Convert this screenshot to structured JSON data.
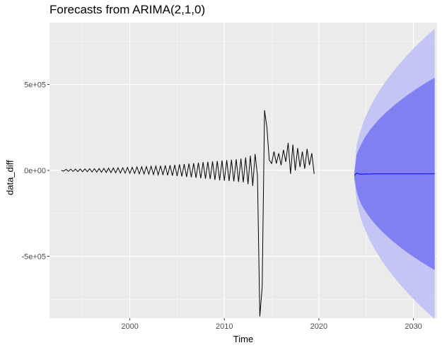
{
  "chart_data": {
    "type": "line",
    "title": "Forecasts from ARIMA(2,1,0)",
    "xlabel": "Time",
    "ylabel": "data_diff",
    "xlim": [
      1991.5,
      2032.5
    ],
    "ylim": [
      -860000,
      860000
    ],
    "x_ticks": [
      2000,
      2010,
      2020,
      2030
    ],
    "x_tick_labels": [
      "2000",
      "2010",
      "2020",
      "2030"
    ],
    "y_ticks": [
      -500000,
      0,
      500000
    ],
    "y_tick_labels": [
      "-5e+05",
      "0e+00",
      "5e+05"
    ],
    "grid": true,
    "background": "#EBEBEB",
    "colors": {
      "history_line": "#000000",
      "forecast_line": "#0000FF",
      "interval_80": "#8080F2",
      "interval_95": "#C4C4F5"
    },
    "history": {
      "x_start": 1992.75,
      "step": 0.25,
      "values": [
        0,
        -4000,
        6000,
        -5000,
        7000,
        -6000,
        8000,
        -7000,
        8000,
        -8000,
        9000,
        -8000,
        10000,
        -9000,
        10000,
        -10000,
        11000,
        -11000,
        12000,
        -12000,
        13000,
        -13000,
        14000,
        -14000,
        15000,
        -15000,
        16000,
        -16000,
        17000,
        -17000,
        18000,
        -18000,
        20000,
        -20000,
        21000,
        -21000,
        22000,
        -22000,
        24000,
        -24000,
        25000,
        -26000,
        27000,
        -27000,
        29000,
        -29000,
        30000,
        -31000,
        32000,
        -33000,
        35000,
        -35000,
        37000,
        -38000,
        40000,
        -40000,
        42000,
        -43000,
        45000,
        -46000,
        48000,
        -48000,
        50000,
        -50000,
        52000,
        -55000,
        55000,
        -58000,
        58000,
        -60000,
        60000,
        -62000,
        62000,
        -64000,
        65000,
        -67000,
        68000,
        -70000,
        75000,
        -80000,
        85000,
        -90000,
        95000,
        -30000,
        -850000,
        -680000,
        350000,
        250000,
        60000,
        40000,
        110000,
        40000,
        100000,
        30000,
        120000,
        50000,
        160000,
        -20000,
        150000,
        0,
        130000,
        20000,
        110000,
        10000,
        125000,
        30000,
        100000,
        -20000
      ]
    },
    "forecast": {
      "x_start": 2023.75,
      "step": 0.25,
      "values": [
        -30000,
        -15000,
        -20000,
        -22000,
        -21000,
        -20000,
        -21000,
        -20000,
        -20000,
        -20000,
        -20000,
        -20000,
        -20000,
        -20000,
        -20000,
        -20000,
        -20000,
        -20000,
        -20000,
        -20000,
        -20000,
        -20000,
        -20000,
        -20000,
        -20000,
        -20000,
        -20000,
        -20000,
        -20000,
        -20000,
        -20000,
        -20000,
        -20000,
        -20000,
        -20000
      ],
      "interval_80_halfwidth_start": 15000,
      "interval_80_halfwidth_end": 560000,
      "interval_95_halfwidth_start": 25000,
      "interval_95_halfwidth_end": 845000
    }
  }
}
